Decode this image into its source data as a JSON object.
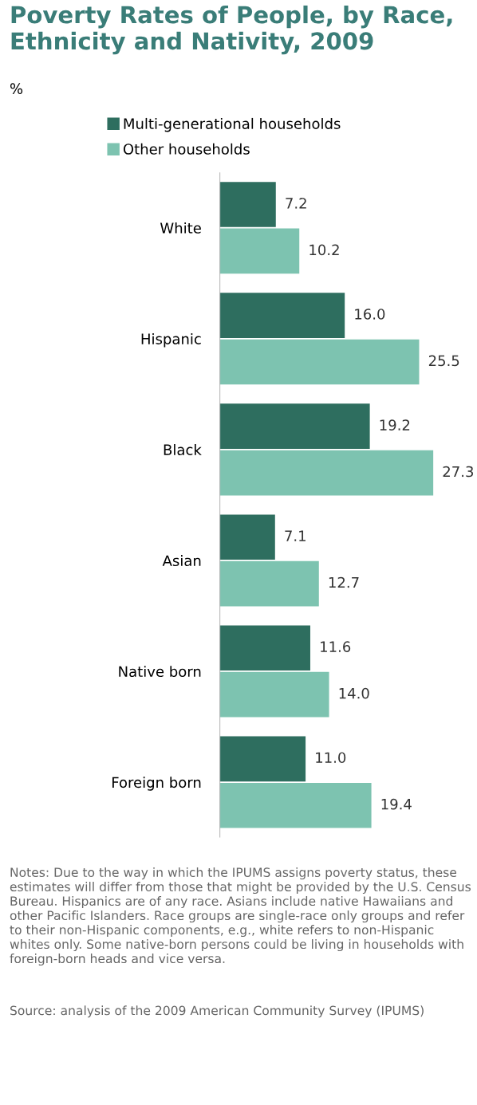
{
  "chart_data": {
    "type": "bar",
    "orientation": "horizontal",
    "title": "Poverty Rates of People, by Race, Ethnicity and Nativity, 2009",
    "subtitle": "%",
    "categories": [
      "White",
      "Hispanic",
      "Black",
      "Asian",
      "Native born",
      "Foreign born"
    ],
    "series": [
      {
        "name": "Multi-generational households",
        "color": "#2e6e5f",
        "values": [
          7.2,
          16.0,
          19.2,
          7.1,
          11.6,
          11.0
        ],
        "value_labels": [
          "7.2",
          "16.0",
          "19.2",
          "7.1",
          "11.6",
          "11.0"
        ]
      },
      {
        "name": "Other households",
        "color": "#7dc3b0",
        "values": [
          10.2,
          25.5,
          27.3,
          12.7,
          14.0,
          19.4
        ],
        "value_labels": [
          "10.2",
          "25.5",
          "27.3",
          "12.7",
          "14.0",
          "19.4"
        ]
      }
    ],
    "tick_labels": "y",
    "legend": "top",
    "grid": false,
    "annotations": [
      "Notes: Due to the way in which the IPUMS assigns poverty status, these estimates will differ from those that might be provided by the U.S. Census Bureau. Hispanics are of any race. Asians include native Hawaiians and other Pacific Islanders. Race groups are single-race only groups and refer to their non-Hispanic components, e.g., white refers to non-Hispanic whites only. Some native-born persons could be living in households with foreign-born heads and vice versa.",
      "Source: analysis of the 2009 American Community Survey (IPUMS)"
    ]
  }
}
